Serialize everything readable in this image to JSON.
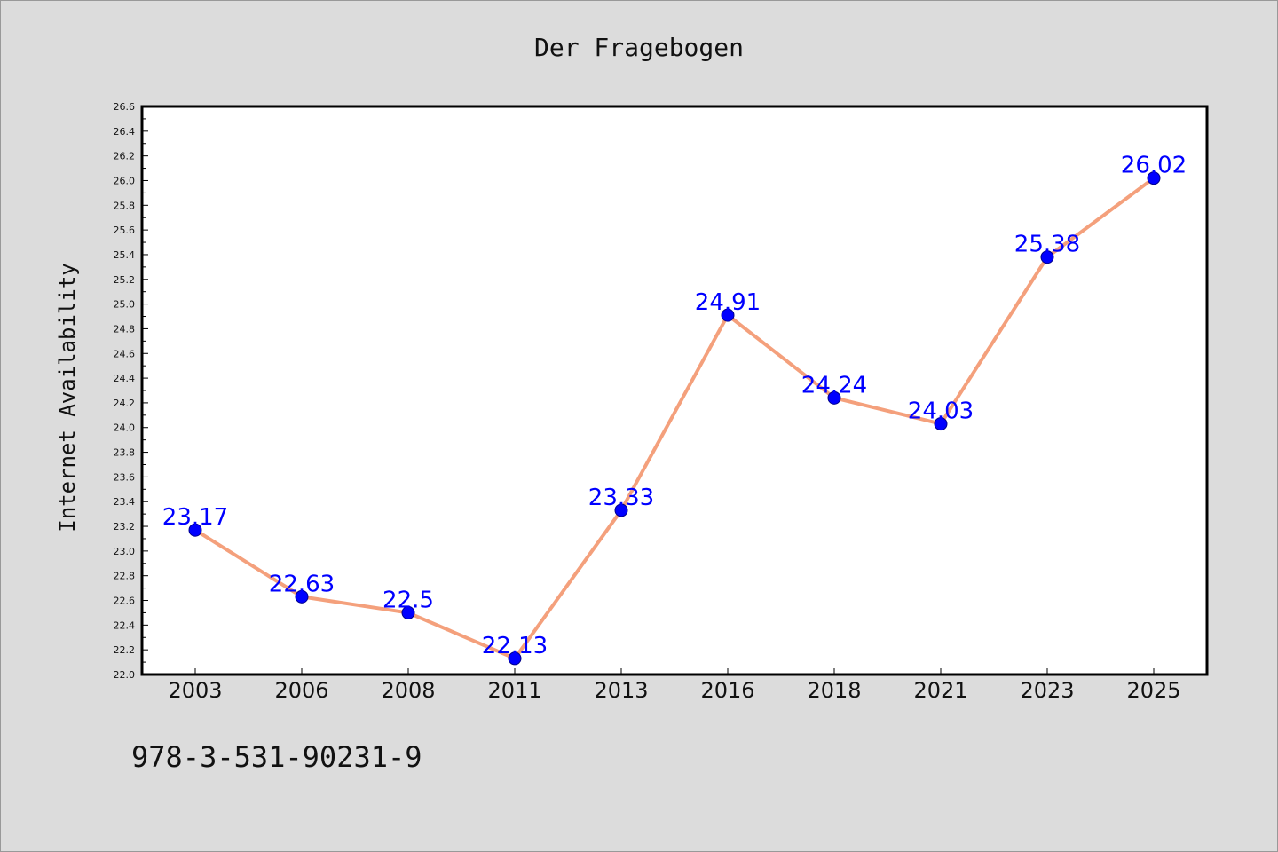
{
  "chart_data": {
    "type": "line",
    "title": "Der Fragebogen",
    "xlabel": "",
    "ylabel": "Internet Availability",
    "footer_text": "978-3-531-90231-9",
    "categories": [
      "2003",
      "2006",
      "2008",
      "2011",
      "2013",
      "2016",
      "2018",
      "2021",
      "2023",
      "2025"
    ],
    "series": [
      {
        "values": [
          23.17,
          22.63,
          22.5,
          22.13,
          23.33,
          24.91,
          24.24,
          24.03,
          25.38,
          26.02
        ],
        "data_labels": [
          "23.17",
          "22.63",
          "22.5",
          "22.13",
          "23.33",
          "24.91",
          "24.24",
          "24.03",
          "25.38",
          "26.02"
        ],
        "line_color": "#f4a07c",
        "marker_color": "#0000ff"
      }
    ],
    "ylim": [
      22.0,
      26.6
    ],
    "yticks": [
      "22.0",
      "22.2",
      "22.4",
      "22.6",
      "22.8",
      "23.0",
      "23.2",
      "23.4",
      "23.6",
      "23.8",
      "24.0",
      "24.2",
      "24.4",
      "24.6",
      "24.8",
      "25.0",
      "25.2",
      "25.4",
      "25.6",
      "25.8",
      "26.0",
      "26.2",
      "26.4",
      "26.6"
    ],
    "grid": false,
    "legend": "none",
    "background_color": "#dcdcdc",
    "plot_background_color": "#ffffff",
    "label_color": "#0000ff"
  }
}
